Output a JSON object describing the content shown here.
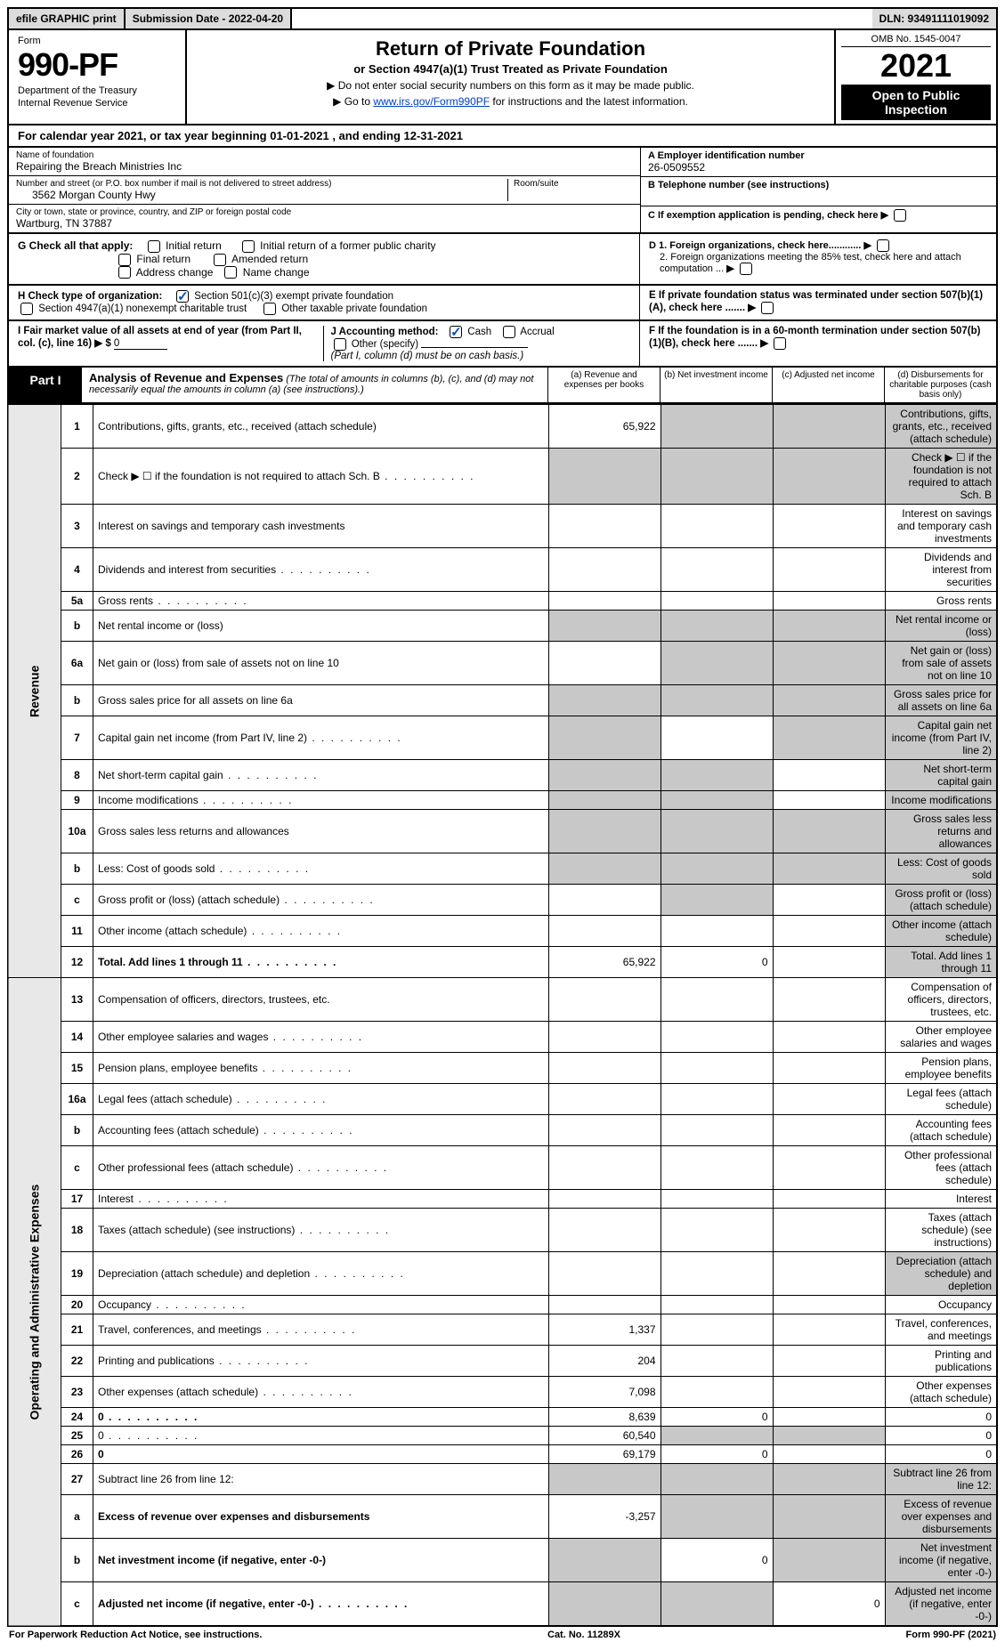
{
  "colors": {
    "header_grey": "#dcdcdc",
    "black": "#000000",
    "white": "#ffffff",
    "link": "#0040c0",
    "check": "#0050c0",
    "cell_grey": "#c8c8c8",
    "side_grey": "#e8e8e8"
  },
  "topbar": {
    "efile": "efile GRAPHIC print",
    "submission_label": "Submission Date - 2022-04-20",
    "dln": "DLN: 93491111019092"
  },
  "header": {
    "form_label": "Form",
    "form_number": "990-PF",
    "dept1": "Department of the Treasury",
    "dept2": "Internal Revenue Service",
    "title": "Return of Private Foundation",
    "subtitle": "or Section 4947(a)(1) Trust Treated as Private Foundation",
    "instr1": "▶ Do not enter social security numbers on this form as it may be made public.",
    "instr2_pre": "▶ Go to ",
    "instr2_link": "www.irs.gov/Form990PF",
    "instr2_post": " for instructions and the latest information.",
    "omb": "OMB No. 1545-0047",
    "year": "2021",
    "open_public": "Open to Public Inspection"
  },
  "calyear": "For calendar year 2021, or tax year beginning 01-01-2021             , and ending 12-31-2021",
  "info": {
    "name_label": "Name of foundation",
    "name": "Repairing the Breach Ministries Inc",
    "street_label": "Number and street (or P.O. box number if mail is not delivered to street address)",
    "street": "3562 Morgan County Hwy",
    "room_label": "Room/suite",
    "city_label": "City or town, state or province, country, and ZIP or foreign postal code",
    "city": "Wartburg, TN  37887",
    "a_label": "A Employer identification number",
    "a_val": "26-0509552",
    "b_label": "B Telephone number (see instructions)",
    "c_label": "C If exemption application is pending, check here",
    "d1_label": "D 1. Foreign organizations, check here............",
    "d2_label": "2. Foreign organizations meeting the 85% test, check here and attach computation ...",
    "e_label": "E  If private foundation status was terminated under section 507(b)(1)(A), check here .......",
    "f_label": "F  If the foundation is in a 60-month termination under section 507(b)(1)(B), check here ......."
  },
  "g": {
    "label": "G Check all that apply:",
    "opts": [
      "Initial return",
      "Final return",
      "Address change",
      "Initial return of a former public charity",
      "Amended return",
      "Name change"
    ]
  },
  "h": {
    "label": "H Check type of organization:",
    "opt1": "Section 501(c)(3) exempt private foundation",
    "opt2": "Section 4947(a)(1) nonexempt charitable trust",
    "opt3": "Other taxable private foundation"
  },
  "i": {
    "label": "I Fair market value of all assets at end of year (from Part II, col. (c), line 16)",
    "arrow": "▶ $",
    "val": "0"
  },
  "j": {
    "label": "J Accounting method:",
    "cash": "Cash",
    "accrual": "Accrual",
    "other": "Other (specify)",
    "note": "(Part I, column (d) must be on cash basis.)"
  },
  "part1": {
    "tab": "Part I",
    "title": "Analysis of Revenue and Expenses",
    "title_note": " (The total of amounts in columns (b), (c), and (d) may not necessarily equal the amounts in column (a) (see instructions).)",
    "col_a": "(a)  Revenue and expenses per books",
    "col_b": "(b)  Net investment income",
    "col_c": "(c)  Adjusted net income",
    "col_d": "(d)  Disbursements for charitable purposes (cash basis only)"
  },
  "side_labels": {
    "revenue": "Revenue",
    "opex": "Operating and Administrative Expenses"
  },
  "rows": [
    {
      "n": "1",
      "d": "Contributions, gifts, grants, etc., received (attach schedule)",
      "a": "65,922",
      "grey": [
        "b",
        "c",
        "d"
      ]
    },
    {
      "n": "2",
      "d": "Check ▶ ☐ if the foundation is not required to attach Sch. B",
      "grey": [
        "a",
        "b",
        "c",
        "d"
      ],
      "dots": true
    },
    {
      "n": "3",
      "d": "Interest on savings and temporary cash investments"
    },
    {
      "n": "4",
      "d": "Dividends and interest from securities",
      "dots": true
    },
    {
      "n": "5a",
      "d": "Gross rents",
      "dots": true
    },
    {
      "n": "b",
      "d": "Net rental income or (loss)",
      "grey": [
        "a",
        "b",
        "c",
        "d"
      ],
      "inline": true
    },
    {
      "n": "6a",
      "d": "Net gain or (loss) from sale of assets not on line 10",
      "grey": [
        "b",
        "c",
        "d"
      ]
    },
    {
      "n": "b",
      "d": "Gross sales price for all assets on line 6a",
      "grey": [
        "a",
        "b",
        "c",
        "d"
      ],
      "inline": true
    },
    {
      "n": "7",
      "d": "Capital gain net income (from Part IV, line 2)",
      "grey": [
        "a",
        "c",
        "d"
      ],
      "dots": true
    },
    {
      "n": "8",
      "d": "Net short-term capital gain",
      "grey": [
        "a",
        "b",
        "d"
      ],
      "dots": true
    },
    {
      "n": "9",
      "d": "Income modifications",
      "grey": [
        "a",
        "b",
        "d"
      ],
      "dots": true
    },
    {
      "n": "10a",
      "d": "Gross sales less returns and allowances",
      "grey": [
        "a",
        "b",
        "c",
        "d"
      ],
      "inline": true
    },
    {
      "n": "b",
      "d": "Less: Cost of goods sold",
      "grey": [
        "a",
        "b",
        "c",
        "d"
      ],
      "dots": true,
      "inline": true
    },
    {
      "n": "c",
      "d": "Gross profit or (loss) (attach schedule)",
      "grey": [
        "b",
        "d"
      ],
      "dots": true
    },
    {
      "n": "11",
      "d": "Other income (attach schedule)",
      "grey": [
        "d"
      ],
      "dots": true
    },
    {
      "n": "12",
      "d": "Total. Add lines 1 through 11",
      "a": "65,922",
      "b": "0",
      "grey": [
        "d"
      ],
      "bold": true,
      "dots": true
    }
  ],
  "rows_exp": [
    {
      "n": "13",
      "d": "Compensation of officers, directors, trustees, etc."
    },
    {
      "n": "14",
      "d": "Other employee salaries and wages",
      "dots": true
    },
    {
      "n": "15",
      "d": "Pension plans, employee benefits",
      "dots": true
    },
    {
      "n": "16a",
      "d": "Legal fees (attach schedule)",
      "dots": true
    },
    {
      "n": "b",
      "d": "Accounting fees (attach schedule)",
      "dots": true
    },
    {
      "n": "c",
      "d": "Other professional fees (attach schedule)",
      "dots": true
    },
    {
      "n": "17",
      "d": "Interest",
      "dots": true
    },
    {
      "n": "18",
      "d": "Taxes (attach schedule) (see instructions)",
      "dots": true
    },
    {
      "n": "19",
      "d": "Depreciation (attach schedule) and depletion",
      "grey": [
        "d"
      ],
      "dots": true
    },
    {
      "n": "20",
      "d": "Occupancy",
      "dots": true
    },
    {
      "n": "21",
      "d": "Travel, conferences, and meetings",
      "a": "1,337",
      "dots": true
    },
    {
      "n": "22",
      "d": "Printing and publications",
      "a": "204",
      "dots": true
    },
    {
      "n": "23",
      "d": "Other expenses (attach schedule)",
      "a": "7,098",
      "dots": true
    },
    {
      "n": "24",
      "d": "0",
      "a": "8,639",
      "b": "0",
      "bold": true,
      "dots": true
    },
    {
      "n": "25",
      "d": "0",
      "a": "60,540",
      "grey": [
        "b",
        "c"
      ],
      "dots": true
    },
    {
      "n": "26",
      "d": "0",
      "a": "69,179",
      "b": "0",
      "bold": true
    },
    {
      "n": "27",
      "d": "Subtract line 26 from line 12:",
      "grey": [
        "a",
        "b",
        "c",
        "d"
      ]
    },
    {
      "n": "a",
      "d": "Excess of revenue over expenses and disbursements",
      "a": "-3,257",
      "grey": [
        "b",
        "c",
        "d"
      ],
      "bold": true
    },
    {
      "n": "b",
      "d": "Net investment income (if negative, enter -0-)",
      "grey": [
        "a",
        "c",
        "d"
      ],
      "b": "0",
      "bold": true
    },
    {
      "n": "c",
      "d": "Adjusted net income (if negative, enter -0-)",
      "grey": [
        "a",
        "b",
        "d"
      ],
      "c": "0",
      "bold": true,
      "dots": true
    }
  ],
  "footer": {
    "left": "For Paperwork Reduction Act Notice, see instructions.",
    "mid": "Cat. No. 11289X",
    "right": "Form 990-PF (2021)"
  }
}
